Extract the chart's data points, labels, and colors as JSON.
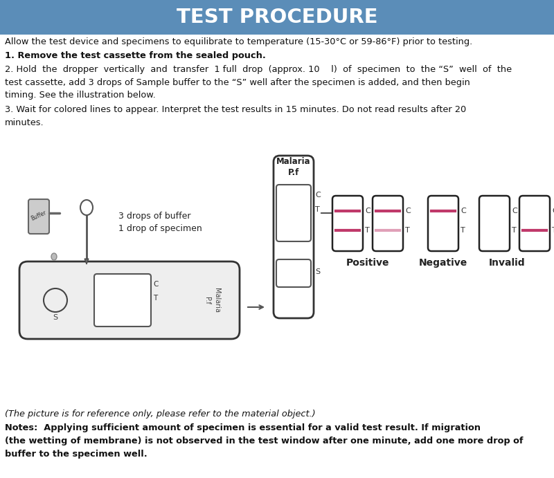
{
  "title": "TEST PROCEDURE",
  "title_bg": "#5b8db8",
  "title_fg": "#ffffff",
  "bg": "#ffffff",
  "fg": "#111111",
  "pink": "#c0396a",
  "lpink": "#e0a0b8",
  "line0": "Allow the test device and specimens to equilibrate to temperature (15-30°C or 59-86°F) prior to testing.",
  "step1": "1. Remove the test cassette from the sealed pouch.",
  "step2a": "2. Hold  the  dropper  vertically  and  transfer  1 full  drop  (approx. 10    l)  of  specimen  to  the “S”  well  of  the",
  "step2b": "test cassette, add 3 drops of Sample buffer to the “S” well after the specimen is added, and then begin",
  "step2c": "timing. See the illustration below.",
  "step3a": "3. Wait for colored lines to appear. Interpret the test results in 15 minutes. Do not read results after 20",
  "step3b": "minutes.",
  "lbl_drop": "1 drop of specimen",
  "lbl_buf": "3 drops of buffer",
  "lbl_malaria": "Malaria\nP.f",
  "lbl_pos": "Positive",
  "lbl_neg": "Negative",
  "lbl_inv": "Invalid",
  "note0": "(The picture is for reference only, please refer to the material object.)",
  "note1": "Notes:  Applying sufficient amount of specimen is essential for a valid test result. If migration",
  "note2": "(the wetting of membrane) is not observed in the test window after one minute, add one more drop of",
  "note3": "buffer to the specimen well."
}
